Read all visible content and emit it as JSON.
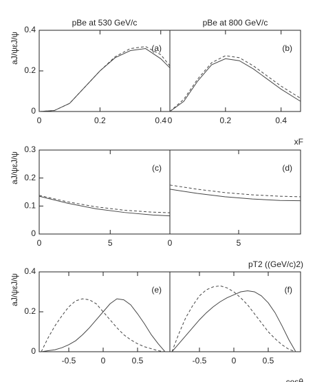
{
  "chart_data": [
    {
      "type": "line",
      "title": "pBe at 530 GeV/c",
      "annotation": "(a)",
      "ylabel": "aJ/ψεJ/ψ",
      "xlim": [
        0,
        0.43
      ],
      "xticks": [
        0,
        0.2,
        0.4
      ],
      "ylim": [
        0,
        0.4
      ],
      "yticks": [
        0,
        0.2,
        0.4
      ],
      "x": [
        0,
        0.05,
        0.1,
        0.15,
        0.2,
        0.25,
        0.3,
        0.35,
        0.4,
        0.43
      ],
      "series": [
        {
          "color": "#444444",
          "dash": false,
          "values": [
            0,
            0.005,
            0.04,
            0.12,
            0.2,
            0.265,
            0.3,
            0.31,
            0.26,
            0.215
          ]
        },
        {
          "color": "#444444",
          "dash": true,
          "values": [
            0,
            0.005,
            0.04,
            0.12,
            0.2,
            0.27,
            0.31,
            0.32,
            0.28,
            0.225
          ]
        }
      ]
    },
    {
      "type": "line",
      "title": "pBe at 800 GeV/c",
      "annotation": "(b)",
      "xlabel": "xF",
      "xlim": [
        0,
        0.47
      ],
      "xticks": [
        0,
        0.2,
        0.4
      ],
      "ylim": [
        0,
        0.4
      ],
      "x": [
        0,
        0.05,
        0.1,
        0.15,
        0.2,
        0.25,
        0.3,
        0.35,
        0.4,
        0.47
      ],
      "series": [
        {
          "color": "#444444",
          "dash": false,
          "values": [
            0,
            0.05,
            0.15,
            0.23,
            0.26,
            0.25,
            0.21,
            0.16,
            0.11,
            0.05
          ]
        },
        {
          "color": "#444444",
          "dash": true,
          "values": [
            0,
            0.06,
            0.16,
            0.24,
            0.275,
            0.265,
            0.225,
            0.175,
            0.125,
            0.065
          ]
        }
      ]
    },
    {
      "type": "line",
      "annotation": "(c)",
      "ylabel": "aJ/ψεJ/ψ",
      "xlim": [
        0,
        9.2
      ],
      "xticks": [
        0,
        5
      ],
      "ylim": [
        0,
        0.3
      ],
      "yticks": [
        0,
        0.1,
        0.2,
        0.3
      ],
      "x": [
        0,
        2,
        4,
        6,
        8,
        9.2
      ],
      "series": [
        {
          "color": "#444444",
          "dash": false,
          "values": [
            0.135,
            0.11,
            0.09,
            0.077,
            0.068,
            0.065
          ]
        },
        {
          "color": "#444444",
          "dash": true,
          "values": [
            0.138,
            0.115,
            0.097,
            0.085,
            0.078,
            0.076
          ]
        }
      ]
    },
    {
      "type": "line",
      "annotation": "(d)",
      "xlabel": "pT2 ((GeV/c)2)",
      "xlim": [
        0,
        9.5
      ],
      "xticks": [
        0,
        5
      ],
      "ylim": [
        0,
        0.3
      ],
      "x": [
        0,
        2,
        4,
        6,
        8,
        9.5
      ],
      "series": [
        {
          "color": "#444444",
          "dash": false,
          "values": [
            0.16,
            0.145,
            0.133,
            0.125,
            0.12,
            0.119
          ]
        },
        {
          "color": "#444444",
          "dash": true,
          "values": [
            0.175,
            0.16,
            0.148,
            0.14,
            0.135,
            0.133
          ]
        }
      ]
    },
    {
      "type": "line",
      "annotation": "(e)",
      "ylabel": "aJ/ψεJ/ψ",
      "xlim": [
        -0.93,
        0.97
      ],
      "xticks": [
        -0.5,
        0,
        0.5
      ],
      "ylim": [
        0,
        0.4
      ],
      "yticks": [
        0,
        0.2,
        0.4
      ],
      "x": [
        -0.9,
        -0.8,
        -0.7,
        -0.6,
        -0.5,
        -0.4,
        -0.3,
        -0.2,
        -0.1,
        0,
        0.1,
        0.2,
        0.3,
        0.4,
        0.5,
        0.6,
        0.7,
        0.8,
        0.9
      ],
      "series": [
        {
          "color": "#444444",
          "dash": false,
          "values": [
            0,
            0.005,
            0.01,
            0.02,
            0.035,
            0.055,
            0.085,
            0.12,
            0.16,
            0.2,
            0.24,
            0.265,
            0.26,
            0.235,
            0.19,
            0.14,
            0.085,
            0.04,
            0
          ]
        },
        {
          "color": "#444444",
          "dash": true,
          "values": [
            0,
            0.07,
            0.13,
            0.18,
            0.225,
            0.255,
            0.265,
            0.26,
            0.24,
            0.2,
            0.16,
            0.12,
            0.085,
            0.06,
            0.04,
            0.025,
            0.015,
            0.005,
            0
          ]
        }
      ]
    },
    {
      "type": "line",
      "annotation": "(f)",
      "xlabel": "cosθ",
      "xlim": [
        -0.93,
        0.97
      ],
      "xticks": [
        -0.5,
        0,
        0.5
      ],
      "ylim": [
        0,
        0.4
      ],
      "x": [
        -0.9,
        -0.8,
        -0.7,
        -0.6,
        -0.5,
        -0.4,
        -0.3,
        -0.2,
        -0.1,
        0,
        0.1,
        0.2,
        0.3,
        0.4,
        0.5,
        0.6,
        0.7,
        0.8,
        0.9
      ],
      "series": [
        {
          "color": "#444444",
          "dash": false,
          "values": [
            0,
            0.04,
            0.08,
            0.12,
            0.16,
            0.195,
            0.225,
            0.25,
            0.27,
            0.285,
            0.3,
            0.305,
            0.3,
            0.28,
            0.245,
            0.195,
            0.13,
            0.06,
            0
          ]
        },
        {
          "color": "#444444",
          "dash": true,
          "values": [
            0,
            0.09,
            0.17,
            0.23,
            0.28,
            0.31,
            0.325,
            0.33,
            0.32,
            0.3,
            0.27,
            0.235,
            0.19,
            0.145,
            0.1,
            0.065,
            0.035,
            0.012,
            0
          ]
        }
      ]
    }
  ]
}
